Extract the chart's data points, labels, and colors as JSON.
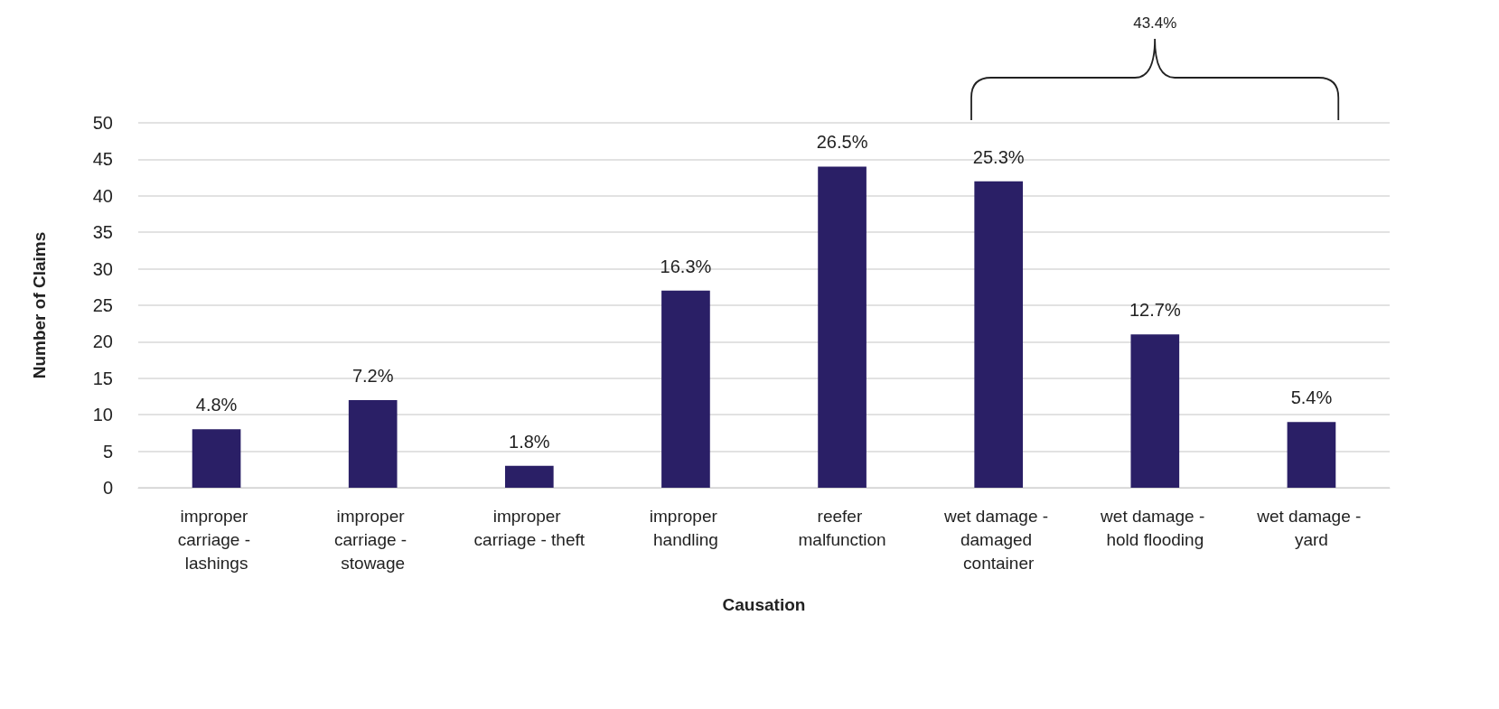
{
  "chart_data": {
    "type": "bar",
    "xlabel": "Causation",
    "ylabel": "Number of Claims",
    "categories": [
      "improper carriage - lashings",
      "improper carriage - stowage",
      "improper carriage - theft",
      "improper handling",
      "reefer malfunction",
      "wet damage - damaged container",
      "wet damage - hold flooding",
      "wet damage - yard"
    ],
    "values": [
      8,
      12,
      3,
      27,
      44,
      42,
      21,
      9
    ],
    "color": "#2a1f66",
    "ylim": [
      0,
      50
    ],
    "yticks": [
      0,
      5,
      10,
      15,
      20,
      25,
      30,
      35,
      40,
      45,
      50
    ],
    "grid": "y",
    "annotations": [
      {
        "text": "4.8%",
        "x": "improper carriage - lashings",
        "y": 8
      },
      {
        "text": "7.2%",
        "x": "improper carriage - stowage",
        "y": 12
      },
      {
        "text": "1.8%",
        "x": "improper carriage - theft",
        "y": 3
      },
      {
        "text": "16.3%",
        "x": "improper handling",
        "y": 27
      },
      {
        "text": "26.5%",
        "x": "reefer malfunction",
        "y": 44
      },
      {
        "text": "25.3%",
        "x": "wet damage - damaged container",
        "y": 42
      },
      {
        "text": "12.7%",
        "x": "wet damage - hold flooding",
        "y": 21
      },
      {
        "text": "5.4%",
        "x": "wet damage - yard",
        "y": 9
      },
      "43.4%"
    ]
  }
}
